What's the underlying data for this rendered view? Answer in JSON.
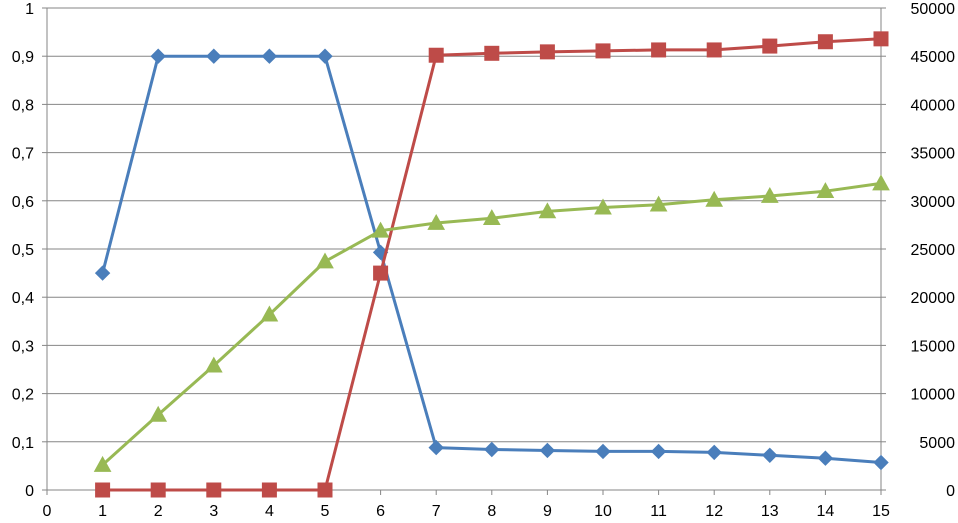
{
  "chart_data": {
    "type": "line",
    "title": "",
    "xlabel": "",
    "ylabel": "",
    "y2label": "",
    "grid": "horizontal",
    "legend": "none",
    "x_axis": {
      "range": [
        0,
        15
      ],
      "ticks": [
        "0",
        "1",
        "2",
        "3",
        "4",
        "5",
        "6",
        "7",
        "8",
        "9",
        "10",
        "11",
        "12",
        "13",
        "14",
        "15"
      ]
    },
    "y_axis_left": {
      "range": [
        0,
        1
      ],
      "ticks": [
        "0",
        "0,1",
        "0,2",
        "0,3",
        "0,4",
        "0,5",
        "0,6",
        "0,7",
        "0,8",
        "0,9",
        "1"
      ]
    },
    "y_axis_right": {
      "range": [
        0,
        50000
      ],
      "ticks": [
        "0",
        "5000",
        "10000",
        "15000",
        "20000",
        "25000",
        "30000",
        "35000",
        "40000",
        "45000",
        "50000"
      ]
    },
    "series": [
      {
        "axis": "left",
        "marker": "diamond",
        "color": "#4a7ebb",
        "x": [
          1,
          2,
          3,
          4,
          5,
          6,
          7,
          8,
          9,
          10,
          11,
          12,
          13,
          14,
          15
        ],
        "values": [
          0.45,
          0.9,
          0.9,
          0.9,
          0.9,
          0.493,
          0.088,
          0.084,
          0.082,
          0.08,
          0.08,
          0.078,
          0.072,
          0.066,
          0.057
        ]
      },
      {
        "axis": "right",
        "marker": "square",
        "color": "#be4b48",
        "x": [
          1,
          2,
          3,
          4,
          5,
          6,
          7,
          8,
          9,
          10,
          11,
          12,
          13,
          14,
          15
        ],
        "values": [
          0,
          0,
          0,
          0,
          0,
          22500,
          45100,
          45300,
          45450,
          45550,
          45650,
          45650,
          46050,
          46500,
          46800
        ]
      },
      {
        "axis": "right",
        "marker": "triangle",
        "color": "#98b954",
        "x": [
          1,
          2,
          3,
          4,
          5,
          6,
          7,
          8,
          9,
          10,
          11,
          12,
          13,
          14,
          15
        ],
        "values": [
          2600,
          7800,
          12900,
          18200,
          23700,
          26900,
          27700,
          28200,
          28900,
          29300,
          29600,
          30100,
          30500,
          31000,
          31800
        ]
      }
    ]
  }
}
